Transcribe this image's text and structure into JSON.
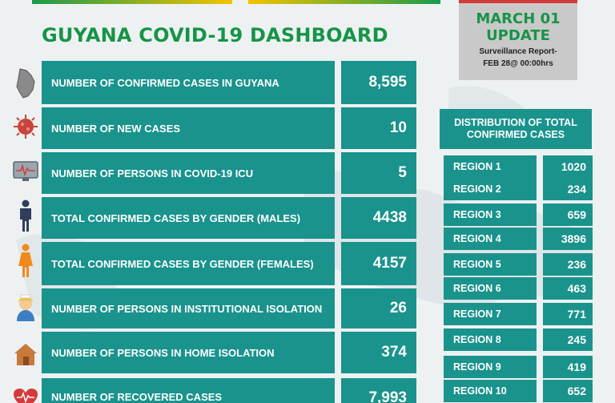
{
  "header": {
    "title": "GUYANA COVID-19 DASHBOARD"
  },
  "update": {
    "date": "MARCH 01",
    "label": "UPDATE",
    "report_line1": "Surveillance Report-",
    "report_line2": "FEB 28@ 00:00hrs"
  },
  "stats": [
    {
      "label": "NUMBER OF CONFIRMED CASES IN GUYANA",
      "value": "8,595",
      "icon": "guyana-map-icon"
    },
    {
      "label": "NUMBER OF NEW CASES",
      "value": "10",
      "icon": "virus-icon"
    },
    {
      "label": "NUMBER OF PERSONS  IN COVID-19 ICU",
      "value": "5",
      "icon": "monitor-icon"
    },
    {
      "label": "TOTAL CONFIRMED CASES BY GENDER (MALES)",
      "value": "4438",
      "icon": "male-icon"
    },
    {
      "label": "TOTAL CONFIRMED CASES BY GENDER (FEMALES)",
      "value": "4157",
      "icon": "female-icon"
    },
    {
      "label": "NUMBER OF PERSONS IN INSTITUTIONAL ISOLATION",
      "value": "26",
      "icon": "nurse-icon"
    },
    {
      "label": "NUMBER OF PERSONS IN HOME ISOLATION",
      "value": "374",
      "icon": "house-icon"
    },
    {
      "label": "NUMBER OF RECOVERED CASES",
      "value": "7,993",
      "icon": "heart-icon"
    }
  ],
  "distribution": {
    "header": "DISTRIBUTION OF TOTAL CONFIRMED CASES",
    "regions": [
      {
        "name": "REGION 1",
        "value": "1020"
      },
      {
        "name": "REGION 2",
        "value": "234"
      },
      {
        "name": "REGION 3",
        "value": "659"
      },
      {
        "name": "REGION 4",
        "value": "3896"
      },
      {
        "name": "REGION 5",
        "value": "236"
      },
      {
        "name": "REGION 6",
        "value": "463"
      },
      {
        "name": "REGION 7",
        "value": "771"
      },
      {
        "name": "REGION 8",
        "value": "245"
      },
      {
        "name": "REGION 9",
        "value": "419"
      },
      {
        "name": "REGION 10",
        "value": "652"
      }
    ]
  },
  "colors": {
    "panel": "#19938c",
    "title_green": "#169447",
    "accent_red": "#d43a3a"
  }
}
